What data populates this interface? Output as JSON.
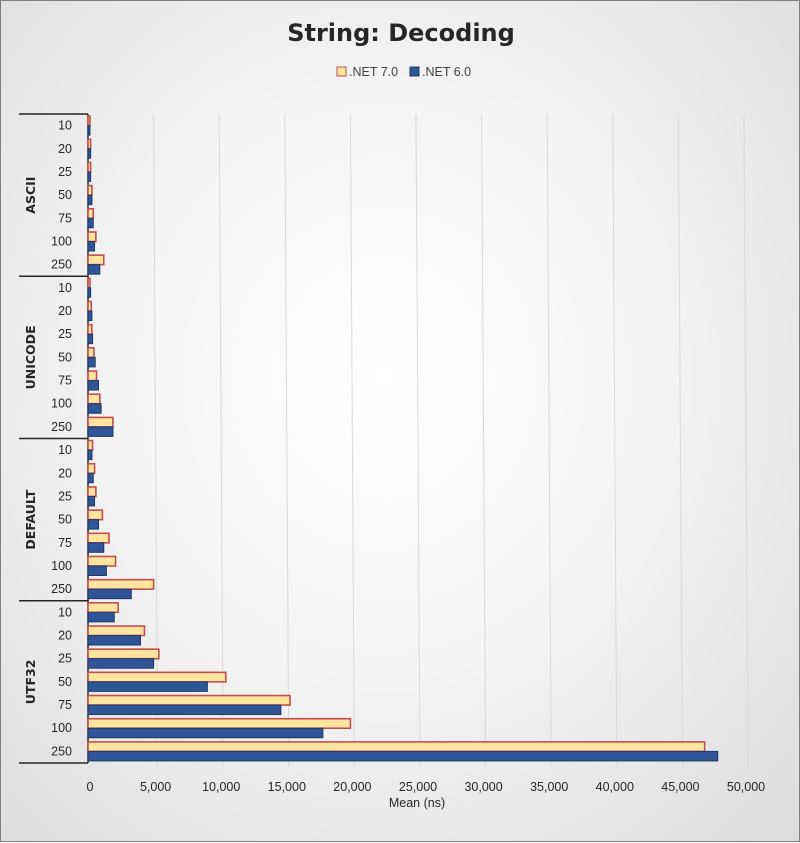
{
  "chart_data": {
    "type": "bar",
    "orientation": "horizontal",
    "title": "String: Decoding",
    "xlabel": "Mean (ns)",
    "ylabel": "",
    "xlim": [
      0,
      50000
    ],
    "x_ticks": [
      "0",
      "5,000",
      "10,000",
      "15,000",
      "20,000",
      "25,000",
      "30,000",
      "35,000",
      "40,000",
      "45,000",
      "50,000"
    ],
    "grid": true,
    "legend_position": "top-center",
    "groups": [
      {
        "name": "ASCII",
        "categories": [
          "10",
          "20",
          "25",
          "50",
          "75",
          "100",
          "250"
        ]
      },
      {
        "name": "UNICODE",
        "categories": [
          "10",
          "20",
          "25",
          "50",
          "75",
          "100",
          "250"
        ]
      },
      {
        "name": "DEFAULT",
        "categories": [
          "10",
          "20",
          "25",
          "50",
          "75",
          "100",
          "250"
        ]
      },
      {
        "name": "UTF32",
        "categories": [
          "10",
          "20",
          "25",
          "50",
          "75",
          "100",
          "250"
        ]
      }
    ],
    "series": [
      {
        "name": ".NET 7.0",
        "color": "#FFE4A0",
        "border": "#C0504D",
        "values": [
          150,
          200,
          200,
          300,
          400,
          600,
          1200,
          150,
          250,
          300,
          450,
          650,
          900,
          1900,
          350,
          500,
          600,
          1100,
          1600,
          2100,
          5000,
          2300,
          4300,
          5400,
          10500,
          15400,
          20000,
          47000
        ]
      },
      {
        "name": ".NET 6.0",
        "color": "#2F5597",
        "border": "#1F3864",
        "values": [
          150,
          200,
          200,
          300,
          400,
          500,
          900,
          200,
          300,
          350,
          550,
          800,
          1000,
          1900,
          300,
          400,
          500,
          800,
          1200,
          1400,
          3300,
          2000,
          4000,
          5000,
          9100,
          14700,
          17900,
          48000
        ]
      }
    ]
  }
}
